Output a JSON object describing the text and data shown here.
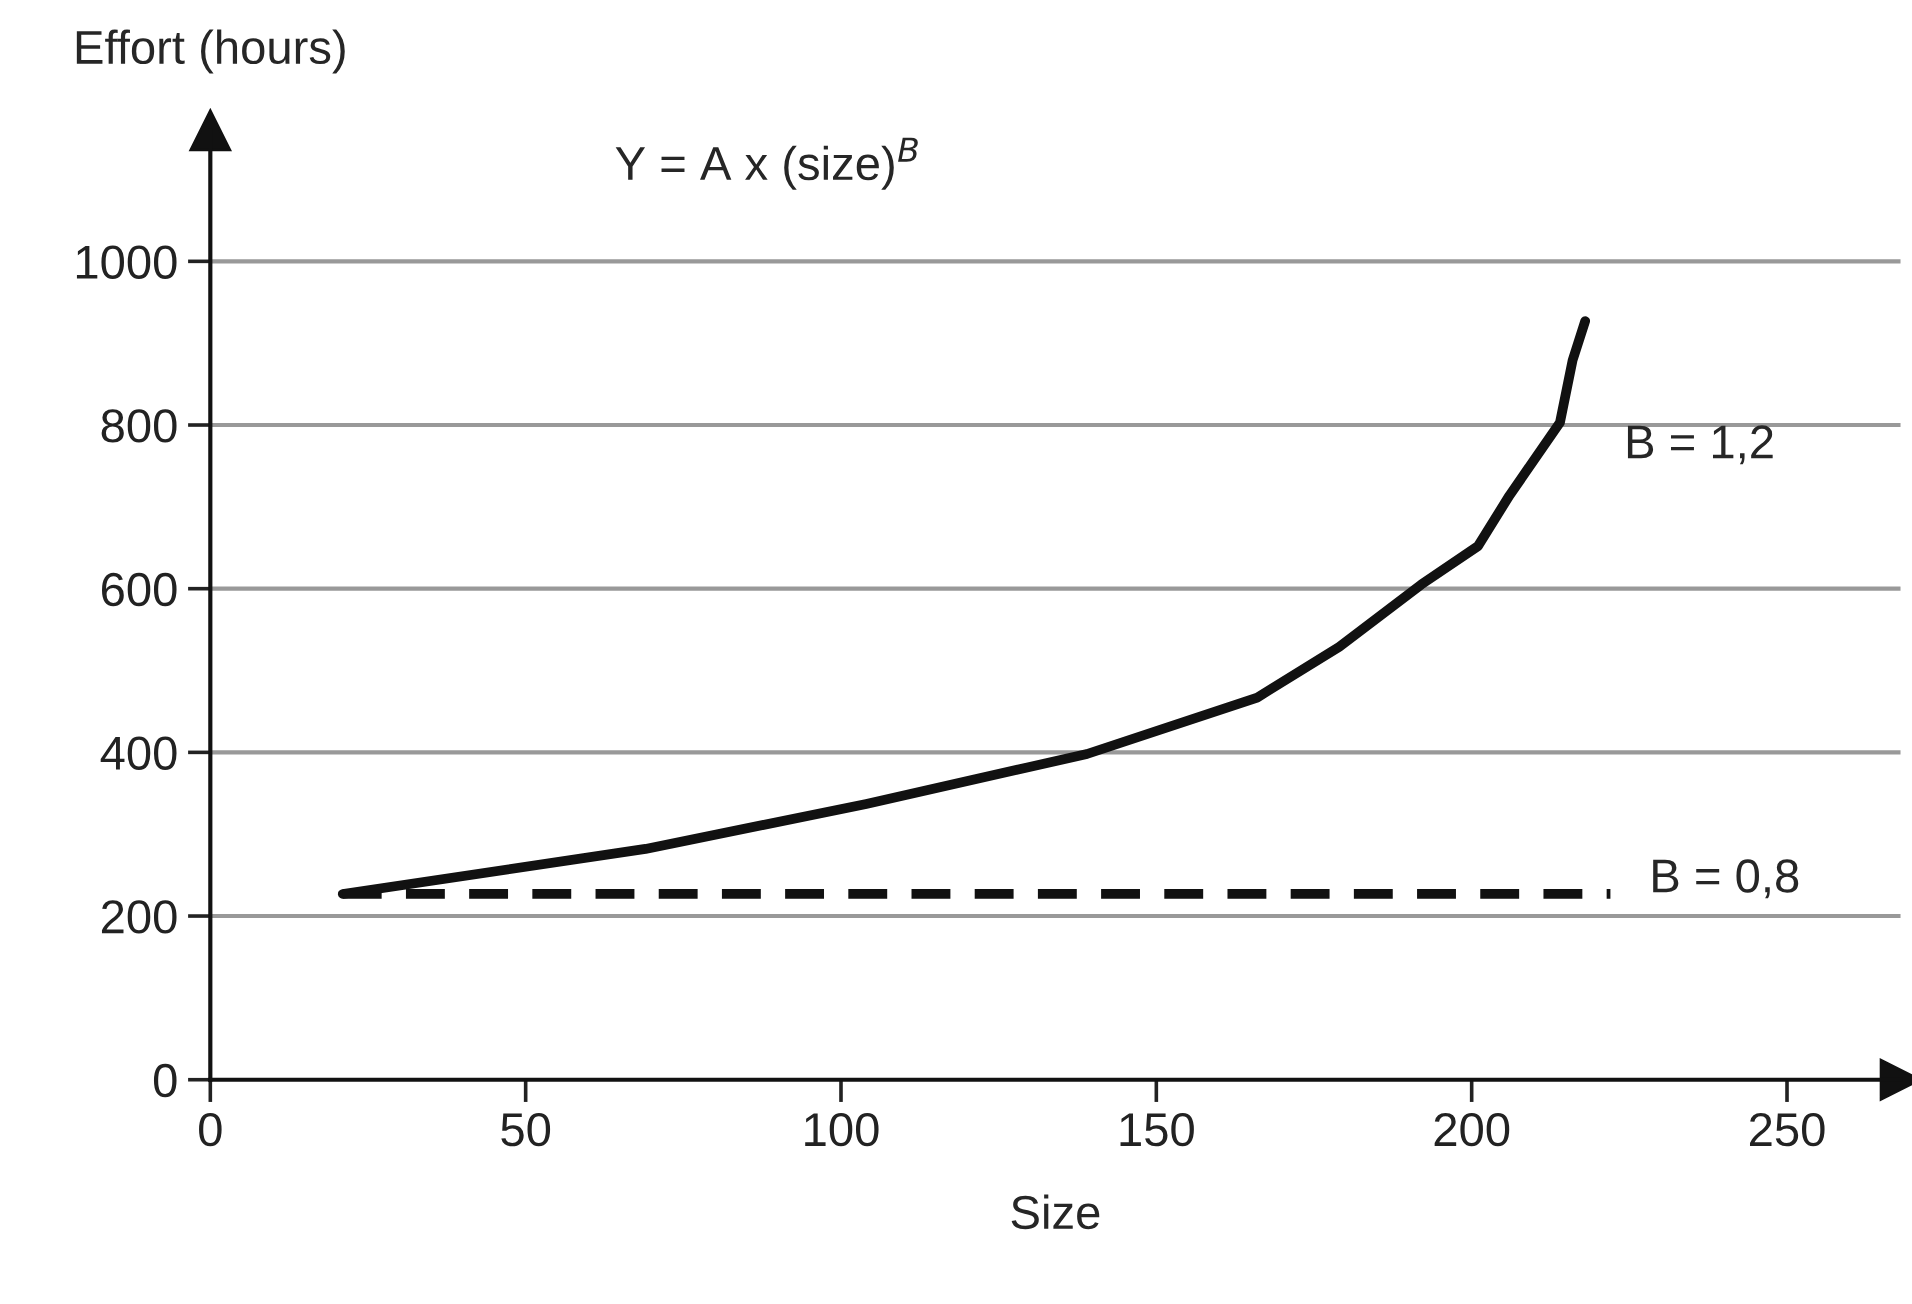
{
  "chart_data": {
    "type": "line",
    "title": "Y = A x (size)$^{B}$",
    "xlabel": "Size",
    "ylabel": "Effort (hours)",
    "series": [
      {
        "name": "B = 1,2",
        "x": [
          21,
          69,
          104,
          139,
          166,
          179,
          192,
          201,
          206,
          214,
          216,
          218
        ],
        "values": [
          227,
          282,
          337,
          398,
          467,
          529,
          605,
          652,
          714,
          803,
          879,
          927
        ],
        "color": "#111111",
        "line_style": "solid"
      },
      {
        "name": "B = 0,8",
        "x": [
          21,
          222
        ],
        "values": [
          227,
          227
        ],
        "color": "#111111",
        "line_style": "dashed"
      }
    ],
    "xlim": [
      0,
      268
    ],
    "xticks": [
      0,
      50,
      100,
      150,
      200,
      250
    ],
    "ylim": [
      0,
      1160
    ],
    "yticks": [
      0,
      200,
      400,
      600,
      800,
      1000
    ],
    "grid": "y",
    "marker": "none"
  }
}
